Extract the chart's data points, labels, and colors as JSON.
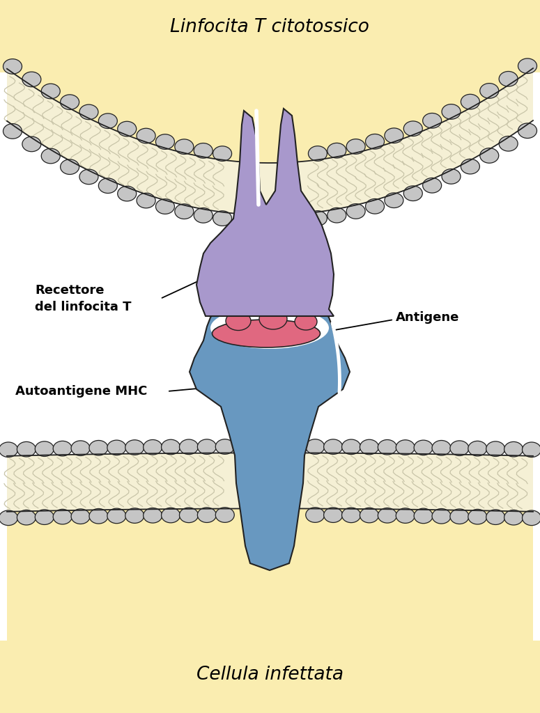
{
  "title_top": "Linfocita T citotossico",
  "title_bottom": "Cellula infettata",
  "label_receptor": "Recettore\ndel linfocita T",
  "label_antigen": "Antigene",
  "label_mhc": "Autoantigene MHC",
  "bg_color": "#ffffff",
  "cell_top_color": "#faedb0",
  "cell_bottom_color": "#faedb0",
  "membrane_fill": "#f5f0d5",
  "phospholipid_head_color": "#c5c5c5",
  "receptor_color": "#a898cc",
  "mhc_color": "#6898c0",
  "antigen_color": "#e06880",
  "outline_color": "#222222",
  "font_size_title": 19,
  "font_size_label": 13
}
